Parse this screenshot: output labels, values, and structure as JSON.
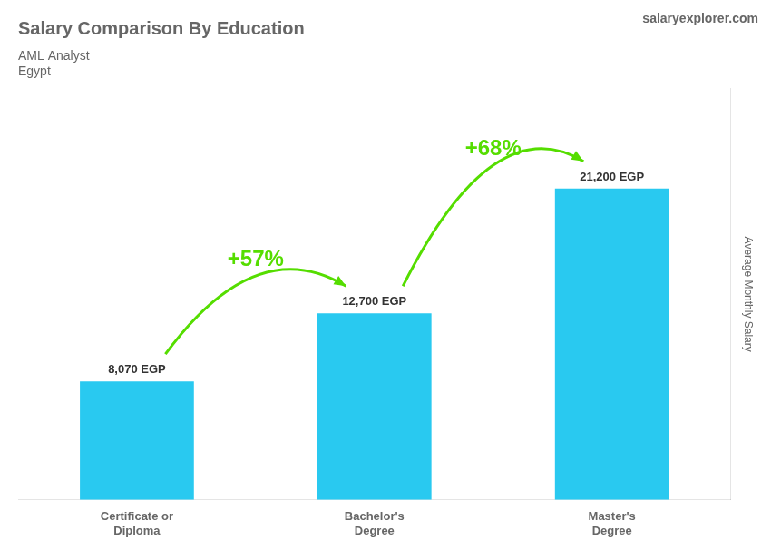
{
  "chart_data": {
    "type": "bar",
    "title": "Salary Comparison By Education",
    "subtitle": [
      "AML Analyst",
      "Egypt"
    ],
    "ylabel": "Average Monthly Salary",
    "categories": [
      "Certificate or\nDiploma",
      "Bachelor's\nDegree",
      "Master's\nDegree"
    ],
    "values": [
      8070,
      12700,
      21200
    ],
    "value_labels": [
      "8,070 EGP",
      "12,700 EGP",
      "21,200 EGP"
    ],
    "color": "#29c9f0",
    "ylim": [
      0,
      28000
    ],
    "grid": false,
    "tick_labels": "x",
    "data_labels": true,
    "annotations": [
      {
        "text": "+57%",
        "from": "Certificate or\nDiploma",
        "to": "Bachelor's\nDegree",
        "color": "#55dd00"
      },
      {
        "text": "+68%",
        "from": "Bachelor's\nDegree",
        "to": "Master's\nDegree",
        "color": "#55dd00"
      },
      {
        "text": "salaryexplorer.com"
      }
    ]
  }
}
